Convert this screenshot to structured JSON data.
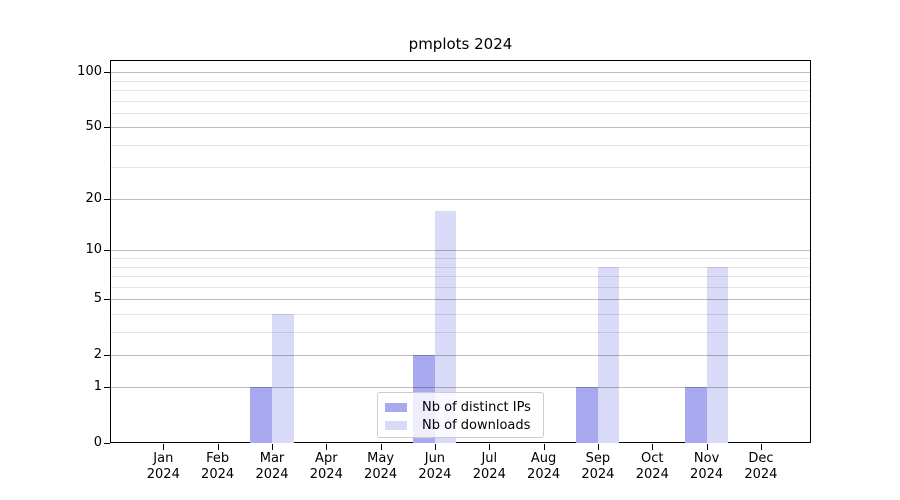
{
  "chart_data": {
    "type": "bar",
    "title": "pmplots 2024",
    "categories": [
      "Jan 2024",
      "Feb 2024",
      "Mar 2024",
      "Apr 2024",
      "May 2024",
      "Jun 2024",
      "Jul 2024",
      "Aug 2024",
      "Sep 2024",
      "Oct 2024",
      "Nov 2024",
      "Dec 2024"
    ],
    "series": [
      {
        "name": "Nb of distinct IPs",
        "color": "#a9a9f0",
        "values": [
          0,
          0,
          1,
          0,
          0,
          2,
          0,
          0,
          1,
          0,
          1,
          0
        ]
      },
      {
        "name": "Nb of downloads",
        "color": "#d9d9f8",
        "values": [
          0,
          0,
          4,
          0,
          0,
          17,
          0,
          0,
          8,
          0,
          8,
          0
        ]
      }
    ],
    "yscale": "log1p",
    "ylim": [
      0,
      117
    ],
    "y_major_ticks": [
      0,
      1,
      2,
      5,
      10,
      20,
      50,
      100
    ],
    "y_minor_gridlines": [
      3,
      4,
      6,
      7,
      8,
      9,
      30,
      40,
      60,
      70,
      80,
      90
    ],
    "grid": true,
    "legend_position": "lower center"
  },
  "colors": {
    "bar_distinct_ips": "#a9a9f0",
    "bar_downloads": "#d9d9f8",
    "major_grid": "rgba(0,0,0,0.26)",
    "minor_grid": "rgba(0,0,0,0.10)",
    "spine": "#000000",
    "text": "#000000"
  }
}
